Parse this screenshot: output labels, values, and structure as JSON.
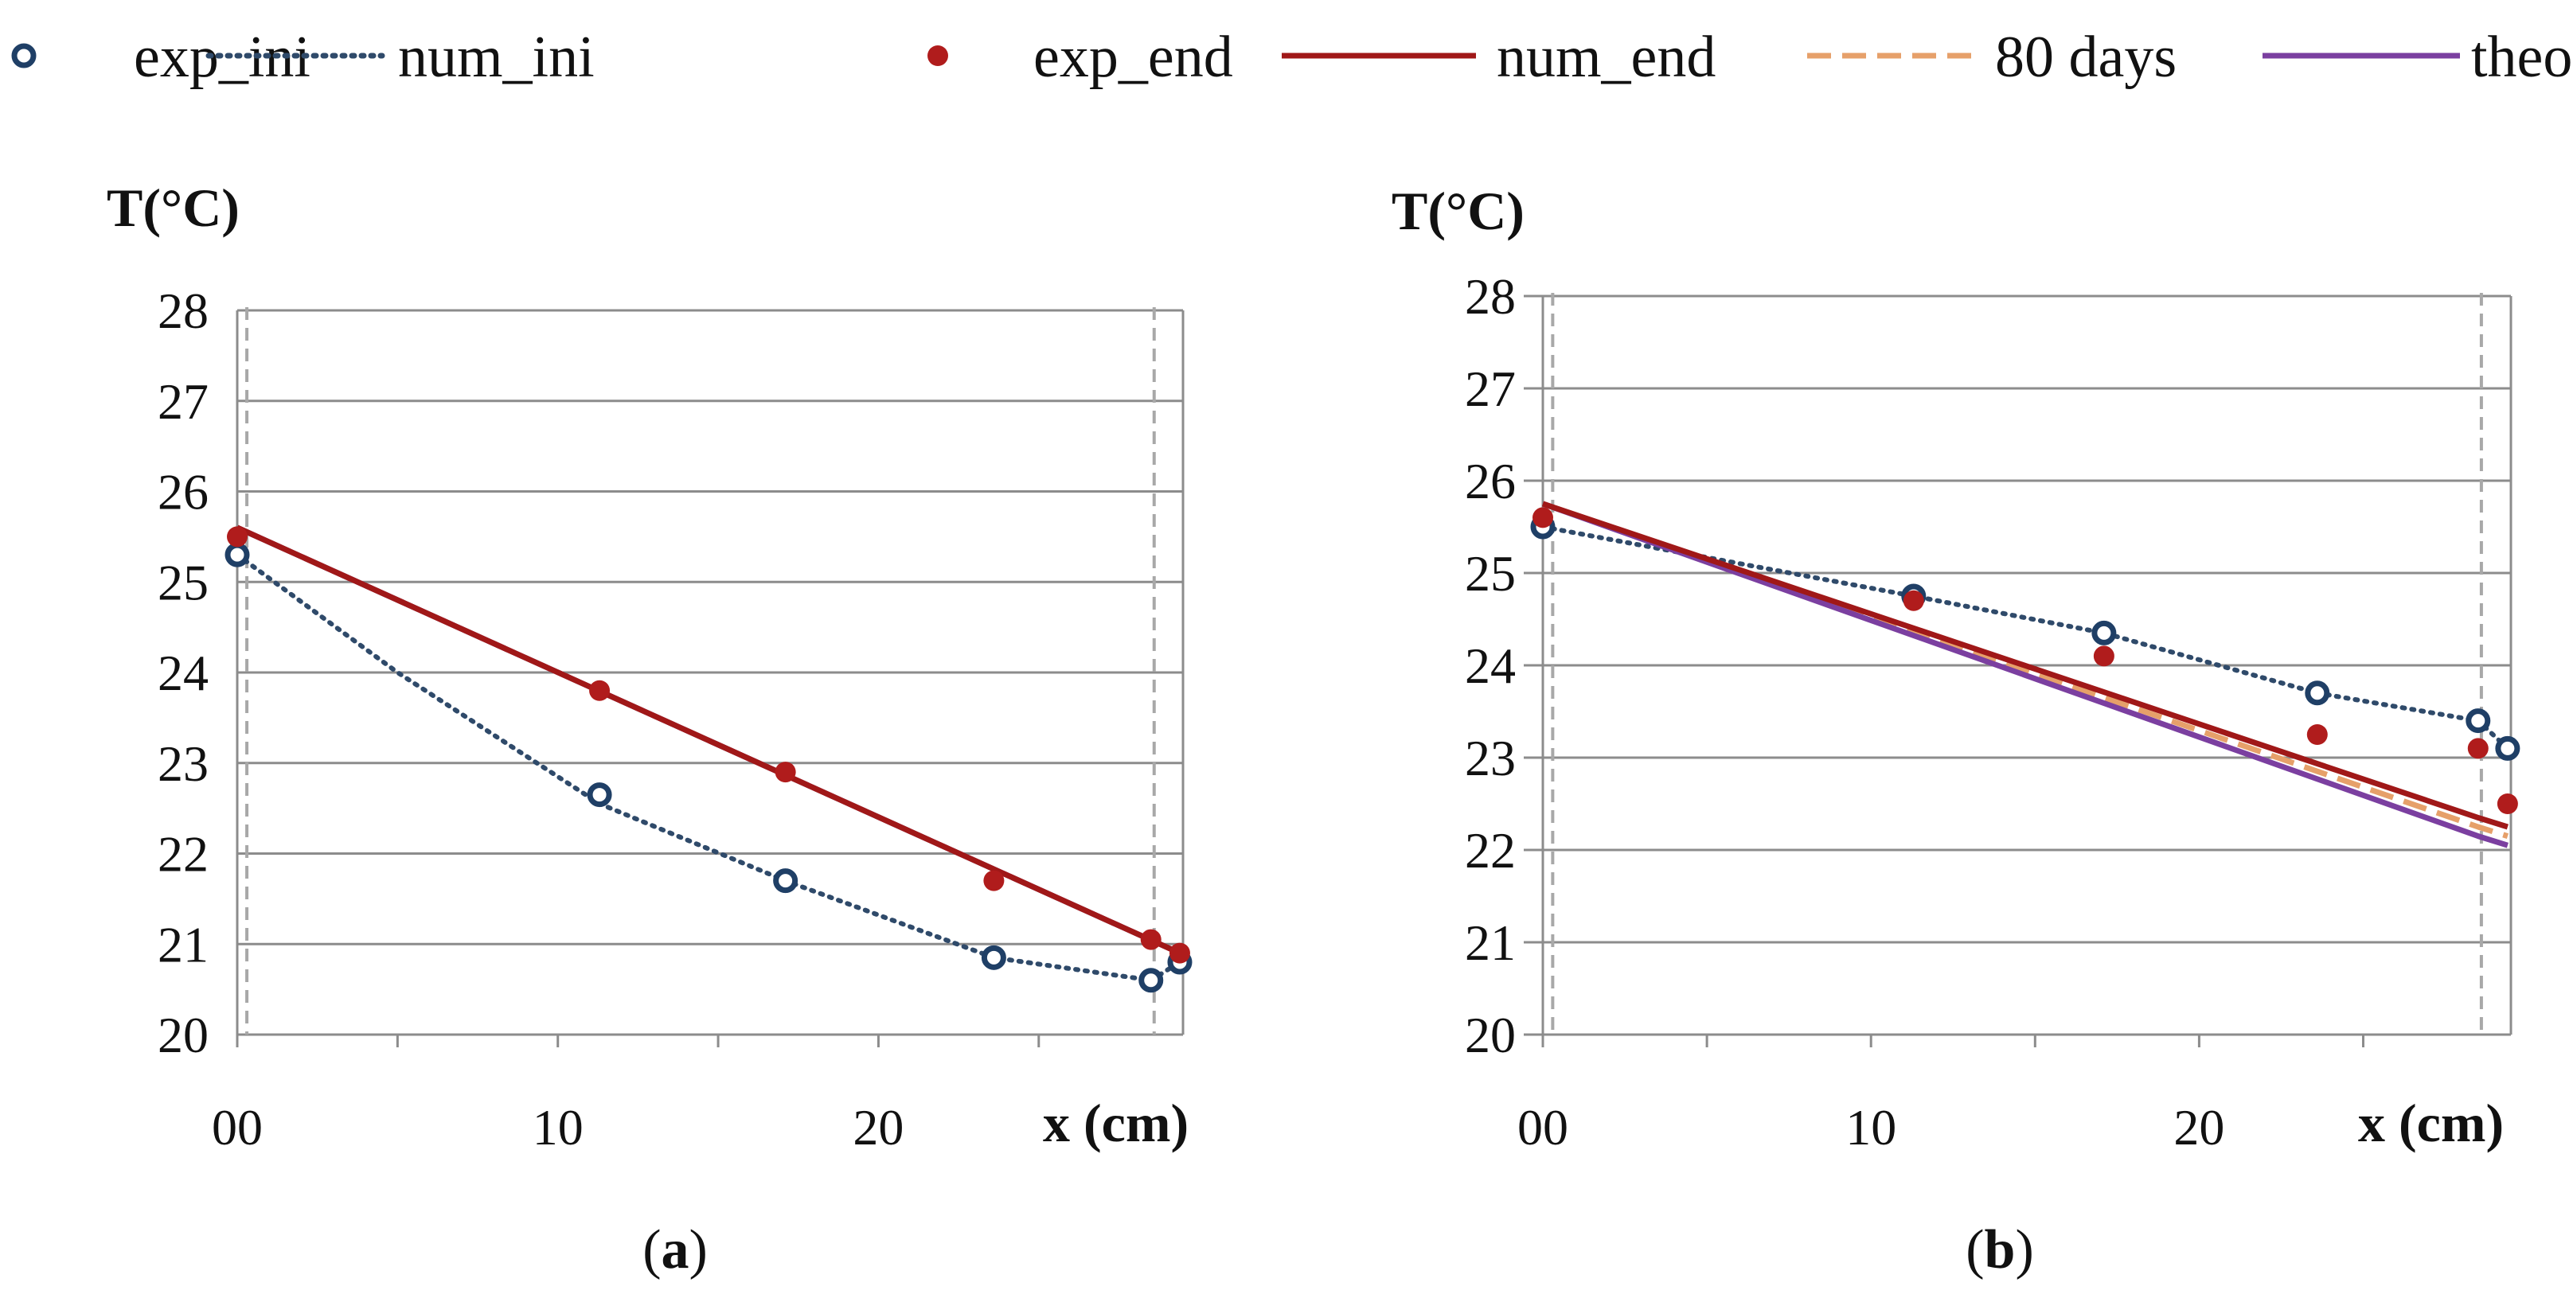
{
  "legend": [
    {
      "key": "exp_ini",
      "label": "exp_ini",
      "kind": "marker-open",
      "color": "#1f3f66"
    },
    {
      "key": "num_ini",
      "label": "num_ini",
      "kind": "line-dotted",
      "color": "#2f4a6a"
    },
    {
      "key": "exp_end",
      "label": "exp_end",
      "kind": "marker-filled",
      "color": "#b01c1c"
    },
    {
      "key": "num_end",
      "label": "num_end",
      "kind": "line-solid",
      "color": "#a01818"
    },
    {
      "key": "days80",
      "label": "80 days",
      "kind": "line-dashed",
      "color": "#e6a06a"
    },
    {
      "key": "theo",
      "label": "theo",
      "kind": "line-solid",
      "color": "#7b3fa0"
    }
  ],
  "chart_data": [
    {
      "panel": "a",
      "caption": "a",
      "type": "line",
      "title": "",
      "ylabel": "T(°C)",
      "xlabel": "x (cm)",
      "xlim": [
        0,
        29.5
      ],
      "ylim": [
        20,
        28
      ],
      "x_tick_labels": [
        {
          "x": 0,
          "label": "00"
        },
        {
          "x": 10,
          "label": "10"
        },
        {
          "x": 20,
          "label": "20"
        }
      ],
      "y_ticks": [
        20,
        21,
        22,
        23,
        24,
        25,
        26,
        27,
        28
      ],
      "grid": "horizontal",
      "reference_lines_x": [
        0.3,
        28.6
      ],
      "series": [
        {
          "key": "num_ini",
          "name": "num_ini",
          "style": "dotted",
          "color": "#2f4a6a",
          "x": [
            0,
            5,
            11.3,
            17.1,
            23.6,
            28.5,
            29.4
          ],
          "y": [
            25.3,
            24.0,
            22.55,
            21.7,
            20.85,
            20.6,
            20.8
          ]
        },
        {
          "key": "days80",
          "name": "80 days",
          "style": "dashed",
          "color": "#e6a06a",
          "x": [
            0,
            29.4
          ],
          "y": [
            25.6,
            20.9
          ]
        },
        {
          "key": "theo",
          "name": "theo",
          "style": "solid",
          "color": "#7b3fa0",
          "x": [
            0,
            29.4
          ],
          "y": [
            25.6,
            20.9
          ]
        },
        {
          "key": "num_end",
          "name": "num_end",
          "style": "solid",
          "color": "#a01818",
          "x": [
            0,
            29.4
          ],
          "y": [
            25.6,
            20.9
          ]
        },
        {
          "key": "exp_ini",
          "name": "exp_ini",
          "style": "marker-open",
          "color": "#1f3f66",
          "x": [
            0,
            11.3,
            17.1,
            23.6,
            28.5,
            29.4
          ],
          "y": [
            25.3,
            22.65,
            21.7,
            20.85,
            20.6,
            20.8
          ]
        },
        {
          "key": "exp_end",
          "name": "exp_end",
          "style": "marker-filled",
          "color": "#b01c1c",
          "x": [
            0,
            11.3,
            17.1,
            23.6,
            28.5,
            29.4
          ],
          "y": [
            25.5,
            23.8,
            22.9,
            21.7,
            21.05,
            20.9
          ]
        }
      ]
    },
    {
      "panel": "b",
      "caption": "b",
      "type": "line",
      "title": "",
      "ylabel": "T(°C)",
      "xlabel": "x (cm)",
      "xlim": [
        0,
        29.5
      ],
      "ylim": [
        20,
        28
      ],
      "x_tick_labels": [
        {
          "x": 0,
          "label": "00"
        },
        {
          "x": 10,
          "label": "10"
        },
        {
          "x": 20,
          "label": "20"
        }
      ],
      "y_ticks": [
        20,
        21,
        22,
        23,
        24,
        25,
        26,
        27,
        28
      ],
      "grid": "horizontal",
      "reference_lines_x": [
        0.3,
        28.6
      ],
      "series": [
        {
          "key": "num_ini",
          "name": "num_ini",
          "style": "dotted",
          "color": "#2f4a6a",
          "x": [
            0,
            11.3,
            17.1,
            23.6,
            28.5,
            29.4
          ],
          "y": [
            25.5,
            24.75,
            24.35,
            23.7,
            23.4,
            23.1
          ]
        },
        {
          "key": "days80",
          "name": "80 days",
          "style": "dashed",
          "color": "#e6a06a",
          "x": [
            0,
            28.5,
            29.4
          ],
          "y": [
            25.75,
            22.25,
            22.15
          ]
        },
        {
          "key": "theo",
          "name": "theo",
          "style": "solid",
          "color": "#7b3fa0",
          "x": [
            0,
            28.5,
            29.4
          ],
          "y": [
            25.75,
            22.15,
            22.05
          ]
        },
        {
          "key": "num_end",
          "name": "num_end",
          "style": "solid",
          "color": "#a01818",
          "x": [
            0,
            28.5,
            29.4
          ],
          "y": [
            25.75,
            22.35,
            22.25
          ]
        },
        {
          "key": "exp_ini",
          "name": "exp_ini",
          "style": "marker-open",
          "color": "#1f3f66",
          "x": [
            0,
            11.3,
            17.1,
            23.6,
            28.5,
            29.4
          ],
          "y": [
            25.5,
            24.75,
            24.35,
            23.7,
            23.4,
            23.1
          ]
        },
        {
          "key": "exp_end",
          "name": "exp_end",
          "style": "marker-filled",
          "color": "#b01c1c",
          "x": [
            0,
            11.3,
            17.1,
            23.6,
            28.5,
            29.4
          ],
          "y": [
            25.6,
            24.7,
            24.1,
            23.25,
            23.1,
            22.5
          ]
        }
      ]
    }
  ]
}
